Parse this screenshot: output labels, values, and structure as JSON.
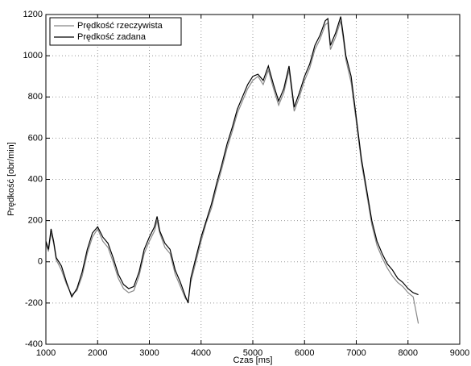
{
  "chart_data": {
    "type": "line",
    "xlabel": "Czas [ms]",
    "ylabel": "Prędkość [obr/min]",
    "x": [
      1000,
      1050,
      1100,
      1150,
      1200,
      1300,
      1400,
      1500,
      1600,
      1700,
      1800,
      1900,
      2000,
      2100,
      2200,
      2300,
      2400,
      2500,
      2600,
      2700,
      2800,
      2900,
      3000,
      3100,
      3150,
      3200,
      3300,
      3400,
      3500,
      3600,
      3700,
      3750,
      3800,
      3900,
      4000,
      4100,
      4200,
      4300,
      4400,
      4500,
      4600,
      4700,
      4800,
      4900,
      5000,
      5100,
      5200,
      5300,
      5400,
      5500,
      5600,
      5700,
      5800,
      5900,
      6000,
      6100,
      6200,
      6300,
      6400,
      6450,
      6500,
      6600,
      6700,
      6750,
      6800,
      6900,
      7000,
      7100,
      7200,
      7300,
      7400,
      7500,
      7600,
      7700,
      7800,
      7900,
      8000,
      8100,
      8200
    ],
    "series": [
      {
        "name": "Prędkość rzeczywista",
        "color": "#888888",
        "values": [
          90,
          50,
          140,
          90,
          10,
          -40,
          -110,
          -160,
          -140,
          -70,
          40,
          120,
          160,
          100,
          70,
          0,
          -80,
          -130,
          -150,
          -140,
          -70,
          40,
          100,
          150,
          200,
          140,
          70,
          40,
          -60,
          -120,
          -180,
          -190,
          -100,
          0,
          100,
          190,
          260,
          360,
          450,
          550,
          630,
          720,
          780,
          840,
          880,
          900,
          860,
          930,
          840,
          760,
          820,
          930,
          730,
          800,
          880,
          940,
          1030,
          1080,
          1150,
          1160,
          1030,
          1090,
          1170,
          1080,
          980,
          870,
          680,
          480,
          330,
          180,
          80,
          20,
          -30,
          -70,
          -100,
          -120,
          -150,
          -170,
          -300
        ]
      },
      {
        "name": "Prędkość zadana",
        "color": "#000000",
        "values": [
          100,
          60,
          160,
          100,
          20,
          -20,
          -100,
          -170,
          -130,
          -50,
          60,
          140,
          170,
          120,
          90,
          20,
          -60,
          -110,
          -130,
          -120,
          -50,
          60,
          120,
          170,
          220,
          150,
          90,
          60,
          -40,
          -100,
          -170,
          -200,
          -80,
          20,
          120,
          200,
          280,
          380,
          470,
          570,
          650,
          740,
          800,
          860,
          900,
          910,
          880,
          950,
          860,
          780,
          840,
          950,
          750,
          820,
          900,
          960,
          1050,
          1100,
          1170,
          1180,
          1050,
          1110,
          1190,
          1100,
          1000,
          900,
          700,
          500,
          350,
          200,
          100,
          40,
          -10,
          -40,
          -80,
          -100,
          -130,
          -150,
          -160
        ]
      }
    ],
    "xlim": [
      1000,
      9000
    ],
    "xticks": [
      1000,
      2000,
      3000,
      4000,
      5000,
      6000,
      7000,
      8000,
      9000
    ],
    "ylim": [
      -400,
      1200
    ],
    "yticks": [
      -400,
      -200,
      0,
      200,
      400,
      600,
      800,
      1000,
      1200
    ],
    "grid": true,
    "legend": "top-left"
  }
}
